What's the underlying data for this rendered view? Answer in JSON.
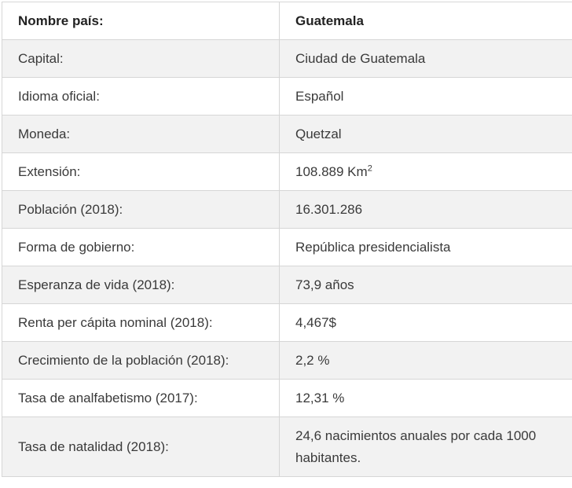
{
  "table": {
    "header": {
      "label": "Nombre país:",
      "value": "Guatemala"
    },
    "rows": [
      {
        "label": "Capital:",
        "value": "Ciudad de Guatemala"
      },
      {
        "label": "Idioma oficial:",
        "value": "Español"
      },
      {
        "label": "Moneda:",
        "value": "Quetzal"
      },
      {
        "label": "Extensión:",
        "value": "108.889 Km",
        "value_sup": "2"
      },
      {
        "label": "Población (2018):",
        "value": "16.301.286"
      },
      {
        "label": "Forma de gobierno:",
        "value": "República presidencialista"
      },
      {
        "label": "Esperanza de vida (2018):",
        "value": "73,9 años"
      },
      {
        "label": "Renta per cápita nominal (2018):",
        "value": "4,467$"
      },
      {
        "label": "Crecimiento de la población (2018):",
        "value": "2,2 %"
      },
      {
        "label": "Tasa de analfabetismo (2017):",
        "value": "12,31 %"
      },
      {
        "label": "Tasa de natalidad (2018):",
        "value": "24,6 nacimientos anuales por cada 1000 habitantes."
      }
    ]
  }
}
